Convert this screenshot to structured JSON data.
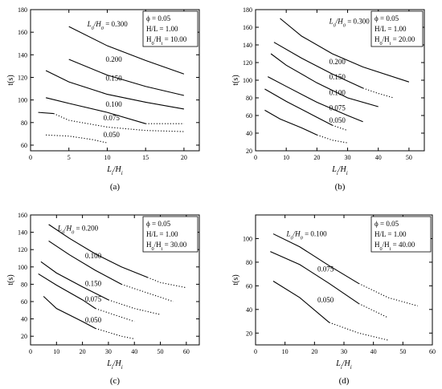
{
  "chart_data": [
    {
      "type": "line",
      "panel_label": "(a)",
      "xlabel": "L_i/H_i",
      "ylabel": "t(s)",
      "xlim": [
        0,
        22
      ],
      "ylim": [
        55,
        180
      ],
      "xticks": [
        0,
        5,
        10,
        15,
        20
      ],
      "yticks": [
        60,
        80,
        100,
        120,
        140,
        160,
        180
      ],
      "legend": [
        "ϕ = 0.05",
        "H/L = 1.00",
        "H_0/H_i = 10.00"
      ],
      "legend_position": "top-right",
      "series_label_prefix": "L_0/H_0 =",
      "series": [
        {
          "name": "0.300",
          "solid": [
            [
              5,
              165
            ],
            [
              10,
              148
            ],
            [
              15,
              135
            ],
            [
              20,
              123
            ]
          ],
          "dotted": []
        },
        {
          "name": "0.200",
          "solid": [
            [
              5,
              136
            ],
            [
              10,
              122
            ],
            [
              15,
              112
            ],
            [
              20,
              104
            ]
          ],
          "dotted": []
        },
        {
          "name": "0.150",
          "solid": [
            [
              2,
              126
            ],
            [
              5,
              116
            ],
            [
              10,
              105
            ],
            [
              15,
              98
            ],
            [
              20,
              92
            ]
          ],
          "dotted": []
        },
        {
          "name": "0.100",
          "solid": [
            [
              2,
              102
            ],
            [
              5,
              97
            ],
            [
              10,
              89
            ],
            [
              15,
              79
            ]
          ],
          "dotted": [
            [
              15,
              79
            ],
            [
              17,
              79
            ],
            [
              20,
              79
            ]
          ]
        },
        {
          "name": "0.075",
          "solid": [
            [
              1,
              89
            ],
            [
              3,
              88
            ]
          ],
          "dotted": [
            [
              3,
              88
            ],
            [
              5,
              82
            ],
            [
              10,
              76
            ],
            [
              15,
              73
            ],
            [
              20,
              72
            ]
          ]
        },
        {
          "name": "0.050",
          "solid": [],
          "dotted": [
            [
              2,
              69
            ],
            [
              5,
              68
            ],
            [
              8,
              65
            ],
            [
              10,
              62
            ]
          ]
        }
      ],
      "label_positions": [
        [
          7.4,
          165
        ],
        [
          9.8,
          134
        ],
        [
          9.8,
          117
        ],
        [
          9.8,
          94
        ],
        [
          9.5,
          82
        ],
        [
          9.5,
          67
        ]
      ]
    },
    {
      "type": "line",
      "panel_label": "(b)",
      "xlabel": "L_i/H_i",
      "ylabel": "t(s)",
      "xlim": [
        0,
        55
      ],
      "ylim": [
        20,
        180
      ],
      "xticks": [
        0,
        10,
        20,
        30,
        40,
        50
      ],
      "yticks": [
        20,
        40,
        60,
        80,
        100,
        120,
        140,
        160,
        180
      ],
      "legend": [
        "ϕ = 0.05",
        "H/L = 1.00",
        "H_0/H_i = 20.00"
      ],
      "legend_position": "top-right",
      "series_label_prefix": "L_0/H_0 =",
      "series": [
        {
          "name": "0.300",
          "solid": [
            [
              8,
              170
            ],
            [
              15,
              150
            ],
            [
              25,
              130
            ],
            [
              35,
              115
            ],
            [
              50,
              98
            ]
          ],
          "dotted": []
        },
        {
          "name": "0.200",
          "solid": [
            [
              6,
              143
            ],
            [
              15,
              125
            ],
            [
              25,
              107
            ],
            [
              35,
              91
            ]
          ],
          "dotted": [
            [
              35,
              91
            ],
            [
              40,
              85
            ],
            [
              45,
              80
            ]
          ]
        },
        {
          "name": "0.150",
          "solid": [
            [
              5,
              130
            ],
            [
              10,
              117
            ],
            [
              20,
              97
            ],
            [
              30,
              80
            ],
            [
              40,
              70
            ]
          ],
          "dotted": []
        },
        {
          "name": "0.100",
          "solid": [
            [
              4,
              104
            ],
            [
              10,
              93
            ],
            [
              20,
              75
            ],
            [
              30,
              60
            ],
            [
              35,
              53
            ]
          ],
          "dotted": []
        },
        {
          "name": "0.075",
          "solid": [
            [
              3,
              90
            ],
            [
              10,
              76
            ],
            [
              20,
              58
            ],
            [
              25,
              49
            ]
          ],
          "dotted": [
            [
              25,
              49
            ],
            [
              30,
              43
            ]
          ]
        },
        {
          "name": "0.050",
          "solid": [
            [
              3,
              66
            ],
            [
              8,
              56
            ],
            [
              15,
              46
            ],
            [
              20,
              38
            ]
          ],
          "dotted": [
            [
              20,
              38
            ],
            [
              25,
              32
            ],
            [
              30,
              29
            ]
          ]
        }
      ],
      "label_positions": [
        [
          24,
          164
        ],
        [
          24,
          118
        ],
        [
          24,
          101
        ],
        [
          24,
          83
        ],
        [
          24,
          66
        ],
        [
          24,
          52
        ]
      ]
    },
    {
      "type": "line",
      "panel_label": "(c)",
      "xlabel": "L_i/H_i",
      "ylabel": "t(s)",
      "xlim": [
        0,
        65
      ],
      "ylim": [
        10,
        160
      ],
      "xticks": [
        0,
        10,
        20,
        30,
        40,
        50,
        60
      ],
      "yticks": [
        20,
        40,
        60,
        80,
        100,
        120,
        140,
        160
      ],
      "legend": [
        "ϕ = 0.05",
        "H/L = 1.00",
        "H_0/H_i = 30.00"
      ],
      "legend_position": "top-right",
      "series_label_prefix": "L_0/H_0 =",
      "series": [
        {
          "name": "0.200",
          "solid": [
            [
              7,
              149
            ],
            [
              15,
              133
            ],
            [
              25,
              115
            ],
            [
              35,
              100
            ],
            [
              45,
              88
            ]
          ],
          "dotted": [
            [
              45,
              88
            ],
            [
              50,
              82
            ],
            [
              60,
              76
            ]
          ]
        },
        {
          "name": "0.100",
          "solid": [
            [
              7,
              130
            ],
            [
              15,
              114
            ],
            [
              25,
              96
            ],
            [
              35,
              80
            ]
          ],
          "dotted": [
            [
              35,
              80
            ],
            [
              45,
              70
            ],
            [
              55,
              60
            ]
          ]
        },
        {
          "name": "0.150",
          "solid": [
            [
              4,
              106
            ],
            [
              10,
              93
            ],
            [
              20,
              77
            ],
            [
              30,
              62
            ]
          ],
          "dotted": [
            [
              30,
              62
            ],
            [
              40,
              52
            ],
            [
              50,
              45
            ]
          ]
        },
        {
          "name": "0.075",
          "solid": [
            [
              3,
              92
            ],
            [
              10,
              79
            ],
            [
              20,
              62
            ],
            [
              25,
              52
            ]
          ],
          "dotted": [
            [
              25,
              52
            ],
            [
              35,
              42
            ],
            [
              40,
              37
            ]
          ]
        },
        {
          "name": "0.050",
          "solid": [
            [
              5,
              66
            ],
            [
              10,
              52
            ],
            [
              20,
              37
            ],
            [
              25,
              29
            ]
          ],
          "dotted": [
            [
              25,
              29
            ],
            [
              35,
              20
            ],
            [
              40,
              17
            ]
          ]
        }
      ],
      "label_positions": [
        [
          10.5,
          142
        ],
        [
          21,
          110
        ],
        [
          21,
          78
        ],
        [
          21,
          60
        ],
        [
          21,
          36
        ]
      ]
    },
    {
      "type": "line",
      "panel_label": "(d)",
      "xlabel": "L_i/H_i",
      "ylabel": "t(s)",
      "xlim": [
        0,
        60
      ],
      "ylim": [
        10,
        120
      ],
      "xticks": [
        0,
        10,
        20,
        30,
        40,
        50,
        60
      ],
      "yticks": [
        20,
        40,
        60,
        80,
        100
      ],
      "legend": [
        "ϕ = 0.05",
        "H/L = 1.00",
        "H_0/H_i = 40.00"
      ],
      "legend_position": "top-right",
      "series_label_prefix": "L_0/H_0 =",
      "series": [
        {
          "name": "0.100",
          "solid": [
            [
              6,
              104
            ],
            [
              15,
              93
            ],
            [
              25,
              77
            ],
            [
              35,
              62
            ]
          ],
          "dotted": [
            [
              35,
              62
            ],
            [
              45,
              50
            ],
            [
              55,
              43
            ]
          ]
        },
        {
          "name": "0.075",
          "solid": [
            [
              5,
              89
            ],
            [
              15,
              78
            ],
            [
              25,
              62
            ],
            [
              35,
              45
            ]
          ],
          "dotted": [
            [
              35,
              45
            ],
            [
              45,
              33
            ]
          ]
        },
        {
          "name": "0.050",
          "solid": [
            [
              6,
              64
            ],
            [
              15,
              50
            ],
            [
              25,
              29
            ]
          ],
          "dotted": [
            [
              25,
              29
            ],
            [
              35,
              20
            ],
            [
              45,
              14
            ]
          ]
        }
      ],
      "label_positions": [
        [
          10.5,
          102
        ],
        [
          21,
          72
        ],
        [
          21,
          46
        ]
      ]
    }
  ]
}
